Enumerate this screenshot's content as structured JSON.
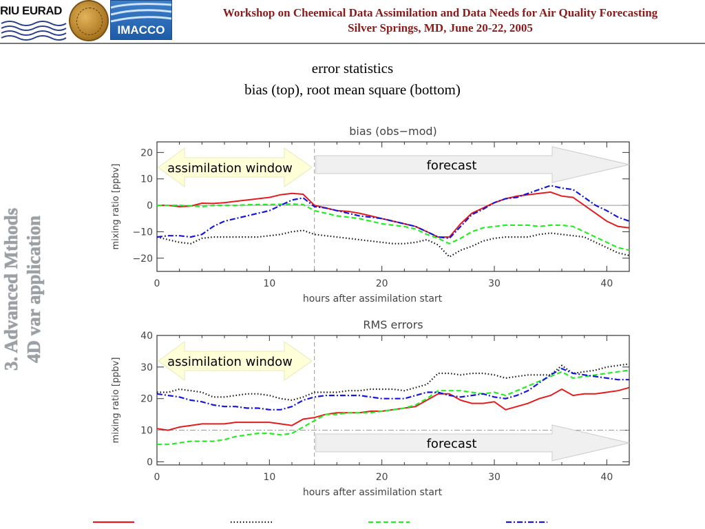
{
  "header": {
    "riu_logo_text": "RIU EURAD",
    "imacco_logo_text": "IMACCO",
    "title_line1": "Workshop on Cheemical Data Assimilation and Data Needs for Air Quality Forecasting",
    "title_line2": "Silver Springs, MD, June 20-22, 2005"
  },
  "slide": {
    "title_line1": "error statistics",
    "title_line2": "bias (top), root mean square (bottom)"
  },
  "sidebar": {
    "line1": "3. Advanced Mthods",
    "line2": "4D var application"
  },
  "annotations": {
    "assimilation_window": "assimilation window",
    "forecast": "forecast"
  },
  "colors": {
    "red": "#e41a1c",
    "black": "#111111",
    "green": "#22ee22",
    "blue": "#1515dd",
    "arrow_fill_left": "#ffffd8",
    "arrow_fill_right": "#f0f0f0"
  },
  "chart_data": [
    {
      "type": "line",
      "title": "bias (obs−mod)",
      "xlabel": "hours after assimilation start",
      "ylabel": "mixing ratio [ppbv]",
      "xlim": [
        0,
        42
      ],
      "ylim": [
        -25,
        24
      ],
      "xticks": [
        0,
        10,
        20,
        30,
        40
      ],
      "yticks": [
        -20,
        -10,
        0,
        10,
        20
      ],
      "reference_line": 0,
      "assimilation_end": 14,
      "series": [
        {
          "style": "solid",
          "color": "#e41a1c",
          "x": [
            0,
            1,
            2,
            3,
            4,
            5,
            6,
            7,
            8,
            9,
            10,
            11,
            12,
            13,
            14,
            15,
            16,
            17,
            18,
            19,
            20,
            21,
            22,
            23,
            24,
            25,
            26,
            27,
            28,
            29,
            30,
            31,
            32,
            33,
            34,
            35,
            36,
            37,
            38,
            39,
            40,
            41,
            42
          ],
          "y": [
            0,
            0,
            -0.5,
            -0.3,
            0.8,
            0.7,
            1,
            1.5,
            2,
            2.5,
            3,
            4,
            4.5,
            4.2,
            0,
            -1,
            -2,
            -2.3,
            -3,
            -4,
            -5,
            -6,
            -7,
            -8,
            -10,
            -12,
            -12,
            -7,
            -3,
            -1,
            1,
            2.5,
            3.5,
            4,
            4.5,
            5,
            3.5,
            3,
            0,
            -3,
            -6,
            -8,
            -8.5
          ]
        },
        {
          "style": "dotted",
          "color": "#111111",
          "x": [
            0,
            1,
            2,
            3,
            4,
            5,
            6,
            7,
            8,
            9,
            10,
            11,
            12,
            13,
            14,
            15,
            16,
            17,
            18,
            19,
            20,
            21,
            22,
            23,
            24,
            25,
            26,
            27,
            28,
            29,
            30,
            31,
            32,
            33,
            34,
            35,
            36,
            37,
            38,
            39,
            40,
            41,
            42
          ],
          "y": [
            -12,
            -13,
            -14,
            -14.5,
            -12.5,
            -12,
            -12,
            -12,
            -12,
            -12,
            -11.5,
            -11,
            -10,
            -9.5,
            -11,
            -11.5,
            -12,
            -12.5,
            -13,
            -13.5,
            -14,
            -14.5,
            -14.5,
            -14,
            -13,
            -15,
            -19.5,
            -17,
            -15.5,
            -13.5,
            -12.5,
            -12,
            -12,
            -12,
            -11,
            -10.5,
            -11,
            -11.5,
            -12,
            -14,
            -16,
            -18,
            -19
          ]
        },
        {
          "style": "dashed",
          "color": "#22ee22",
          "x": [
            0,
            1,
            2,
            3,
            4,
            5,
            6,
            7,
            8,
            9,
            10,
            11,
            12,
            13,
            14,
            15,
            16,
            17,
            18,
            19,
            20,
            21,
            22,
            23,
            24,
            25,
            26,
            27,
            28,
            29,
            30,
            31,
            32,
            33,
            34,
            35,
            36,
            37,
            38,
            39,
            40,
            41,
            42
          ],
          "y": [
            0,
            0,
            0,
            -0.2,
            -0.5,
            0,
            0,
            0,
            0.2,
            0.3,
            0.3,
            0.4,
            0.5,
            0.3,
            -2,
            -3,
            -4,
            -4.5,
            -5,
            -6,
            -7,
            -7.5,
            -8,
            -9,
            -11,
            -12.5,
            -14.5,
            -12.5,
            -10,
            -8.5,
            -8,
            -7.5,
            -7.5,
            -7.5,
            -8,
            -7.5,
            -7.5,
            -8,
            -10,
            -12,
            -14,
            -16,
            -17
          ]
        },
        {
          "style": "dashdot",
          "color": "#1515dd",
          "x": [
            0,
            1,
            2,
            3,
            4,
            5,
            6,
            7,
            8,
            9,
            10,
            11,
            12,
            13,
            14,
            15,
            16,
            17,
            18,
            19,
            20,
            21,
            22,
            23,
            24,
            25,
            26,
            27,
            28,
            29,
            30,
            31,
            32,
            33,
            34,
            35,
            36,
            37,
            38,
            39,
            40,
            41,
            42
          ],
          "y": [
            -12,
            -11.5,
            -11.5,
            -12,
            -11,
            -8,
            -6,
            -5,
            -4,
            -3,
            -2,
            0,
            2,
            2.8,
            -0.5,
            -1,
            -2,
            -3,
            -4,
            -4.5,
            -5,
            -6,
            -7,
            -8,
            -10,
            -12,
            -12.5,
            -8,
            -3.5,
            -1.5,
            1,
            2.5,
            3,
            4.5,
            6,
            7.5,
            6.5,
            6,
            3,
            0,
            -2,
            -4.5,
            -6
          ]
        }
      ]
    },
    {
      "type": "line",
      "title": "RMS errors",
      "xlabel": "hours after assimilation start",
      "ylabel": "mixing ratio [ppbv]",
      "xlim": [
        0,
        42
      ],
      "ylim": [
        -1,
        40
      ],
      "xticks": [
        0,
        10,
        20,
        30,
        40
      ],
      "yticks": [
        0,
        10,
        20,
        30,
        40
      ],
      "reference_line": 10,
      "assimilation_end": 14,
      "series": [
        {
          "style": "solid",
          "color": "#e41a1c",
          "x": [
            0,
            1,
            2,
            3,
            4,
            5,
            6,
            7,
            8,
            9,
            10,
            11,
            12,
            13,
            14,
            15,
            16,
            17,
            18,
            19,
            20,
            21,
            22,
            23,
            24,
            25,
            26,
            27,
            28,
            29,
            30,
            31,
            32,
            33,
            34,
            35,
            36,
            37,
            38,
            39,
            40,
            41,
            42
          ],
          "y": [
            10.5,
            10,
            11,
            11.5,
            12,
            12,
            12,
            12.5,
            12.5,
            12.5,
            12.5,
            12,
            11.5,
            13.5,
            14,
            15,
            15.5,
            15.5,
            15.5,
            16,
            16,
            16.5,
            17,
            17.5,
            19.5,
            21.5,
            21.5,
            19.5,
            18.5,
            18.5,
            19,
            16.5,
            17.5,
            18.5,
            20,
            21,
            23,
            21,
            21.5,
            21.5,
            22,
            22.5,
            23.5
          ]
        },
        {
          "style": "dotted",
          "color": "#111111",
          "x": [
            0,
            1,
            2,
            3,
            4,
            5,
            6,
            7,
            8,
            9,
            10,
            11,
            12,
            13,
            14,
            15,
            16,
            17,
            18,
            19,
            20,
            21,
            22,
            23,
            24,
            25,
            26,
            27,
            28,
            29,
            30,
            31,
            32,
            33,
            34,
            35,
            36,
            37,
            38,
            39,
            40,
            41,
            42
          ],
          "y": [
            22,
            22,
            23,
            22.5,
            22,
            20.5,
            20.5,
            21,
            21.5,
            21.5,
            21,
            20,
            19.5,
            20.5,
            22,
            22,
            22,
            22.5,
            22.5,
            23,
            23,
            23,
            22.5,
            23.5,
            24.5,
            28,
            28,
            27.5,
            28,
            28,
            27.5,
            26.5,
            27,
            27.5,
            27.5,
            27.5,
            30.5,
            28,
            28.5,
            29,
            30,
            30.5,
            31
          ]
        },
        {
          "style": "dashed",
          "color": "#22ee22",
          "x": [
            0,
            1,
            2,
            3,
            4,
            5,
            6,
            7,
            8,
            9,
            10,
            11,
            12,
            13,
            14,
            15,
            16,
            17,
            18,
            19,
            20,
            21,
            22,
            23,
            24,
            25,
            26,
            27,
            28,
            29,
            30,
            31,
            32,
            33,
            34,
            35,
            36,
            37,
            38,
            39,
            40,
            41,
            42
          ],
          "y": [
            5.5,
            5.5,
            6,
            6.5,
            6.5,
            6.5,
            7,
            8,
            8.5,
            9,
            9,
            8.5,
            9,
            11,
            13,
            15,
            15,
            15.5,
            15.5,
            15.5,
            16,
            16.5,
            17,
            18,
            20,
            22.5,
            22.5,
            22.5,
            22,
            21.5,
            22,
            21,
            22.5,
            24,
            25.5,
            27,
            28.5,
            26.5,
            27,
            27.5,
            28,
            28.5,
            29
          ]
        },
        {
          "style": "dashdot",
          "color": "#1515dd",
          "x": [
            0,
            1,
            2,
            3,
            4,
            5,
            6,
            7,
            8,
            9,
            10,
            11,
            12,
            13,
            14,
            15,
            16,
            17,
            18,
            19,
            20,
            21,
            22,
            23,
            24,
            25,
            26,
            27,
            28,
            29,
            30,
            31,
            32,
            33,
            34,
            35,
            36,
            37,
            38,
            39,
            40,
            41,
            42
          ],
          "y": [
            21.5,
            21,
            20.5,
            19.5,
            19,
            18,
            17.5,
            17.5,
            17,
            17,
            16.5,
            16.5,
            17.5,
            19.5,
            20.5,
            21,
            21,
            21,
            21,
            20.5,
            20,
            20,
            20,
            21,
            22,
            22,
            21,
            20.5,
            21,
            21.5,
            20.5,
            20,
            21,
            22.5,
            25,
            27.5,
            29.5,
            28,
            27.5,
            27,
            26.5,
            26,
            26
          ]
        }
      ]
    }
  ]
}
